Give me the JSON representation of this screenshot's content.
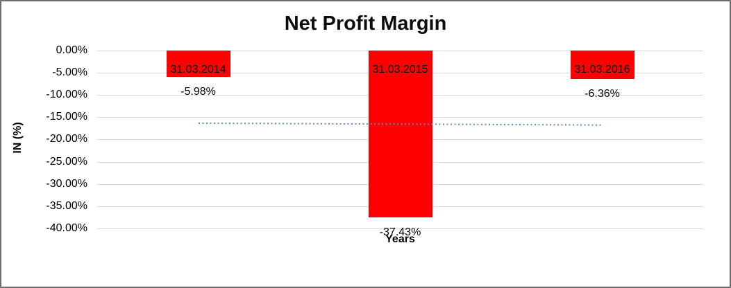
{
  "chart_data": {
    "type": "bar",
    "title": "Net Profit Margin",
    "xlabel": "Years",
    "ylabel": "IN (%)",
    "categories": [
      "31.03.2014",
      "31.03.2015",
      "31.03.2016"
    ],
    "values": [
      -5.98,
      -37.43,
      -6.36
    ],
    "data_labels": [
      "-5.98%",
      "-37.43%",
      "-6.36%"
    ],
    "ylim": [
      -40,
      0
    ],
    "ytick_step": -5,
    "ytick_labels": [
      "0.00%",
      "-5.00%",
      "-10.00%",
      "-15.00%",
      "-20.00%",
      "-25.00%",
      "-30.00%",
      "-35.00%",
      "-40.00%"
    ],
    "grid": true,
    "legend_position": "none",
    "bar_color": "#ff0000",
    "gridline_color": "#d9d9d9",
    "text_color": "#000000",
    "trendline": {
      "type": "linear",
      "style": "dotted",
      "color": "#5b8ac9",
      "start_value": -16.4,
      "end_value": -16.8
    }
  }
}
